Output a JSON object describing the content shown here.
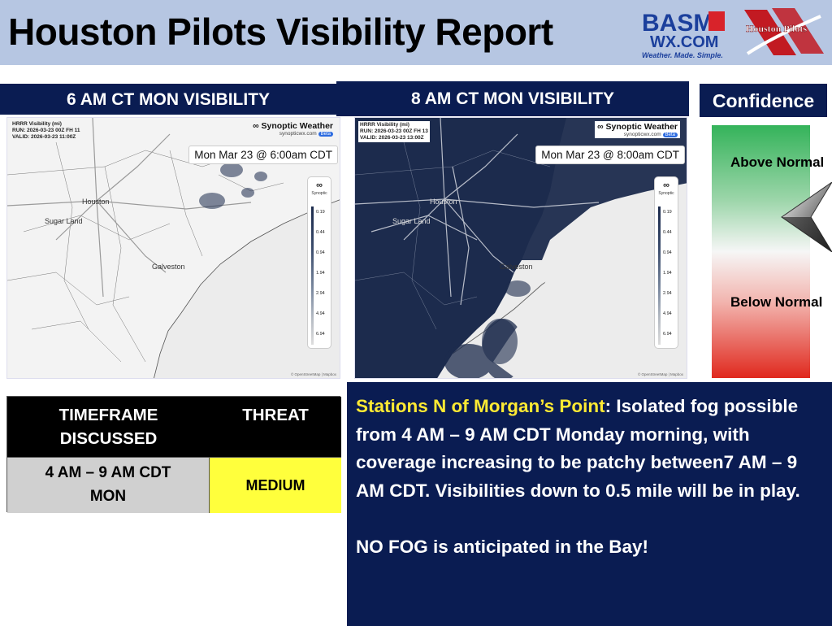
{
  "header": {
    "title": "Houston Pilots Visibility Report"
  },
  "logos": {
    "basm_top": "BASM",
    "basm_bottom": "WX.COM",
    "basm_tagline": "Weather. Made. Simple.",
    "hp_text": "Houston Pilots"
  },
  "maps": [
    {
      "banner": "6 AM CT MON VISIBILITY",
      "meta_title": "HRRR Visibility (mi)",
      "meta_run": "RUN: 2026-03-23 00Z FH 11",
      "meta_valid": "VALID: 2026-03-23 11:00Z",
      "brand": "Synoptic Weather",
      "brand_url": "synopticwx.com",
      "beta": "Beta",
      "time_label": "Mon Mar 23 @ 6:00am CDT",
      "places": [
        "Houston",
        "Sugar Land",
        "Galveston"
      ],
      "attribution": "© OpenStreetMap | Mapbox"
    },
    {
      "banner": "8 AM CT MON VISIBILITY",
      "meta_title": "HRRR Visibility (mi)",
      "meta_run": "RUN: 2026-03-23 00Z FH 13",
      "meta_valid": "VALID: 2026-03-23 13:00Z",
      "brand": "Synoptic Weather",
      "brand_url": "synopticwx.com",
      "beta": "Beta",
      "time_label": "Mon Mar 23 @ 8:00am CDT",
      "places": [
        "Houston",
        "Sugar Land",
        "Galveston"
      ],
      "attribution": "© OpenStreetMap | Mapbox"
    }
  ],
  "legend": {
    "logo": "∞",
    "logo_text": "Synoptic",
    "values": [
      "0.19",
      "0.44",
      "0.94",
      "1.94",
      "2.94",
      "4.94",
      "6.94"
    ]
  },
  "confidence": {
    "title": "Confidence",
    "above": "Above Normal",
    "below": "Below Normal",
    "level": "above-normal"
  },
  "threat_table": {
    "col_timeframe": "TIMEFRAME DISCUSSED",
    "col_threat": "THREAT",
    "timeframe": "4 AM – 9 AM CDT MON",
    "threat": "MEDIUM",
    "threat_color": "#ffff3c"
  },
  "discussion": {
    "highlight": "Stations N of Morgan’s Point",
    "body": ": Isolated fog possible from 4 AM – 9 AM CDT Monday morning, with coverage increasing to be patchy between7 AM – 9 AM CDT. Visibilities down to 0.5 mile will be in play.",
    "note": "NO FOG is anticipated in the Bay!"
  },
  "colors": {
    "navy": "#0a1c52",
    "header_bg": "#b6c6e2",
    "highlight": "#ffea33",
    "fog": "#1c2b4d"
  }
}
